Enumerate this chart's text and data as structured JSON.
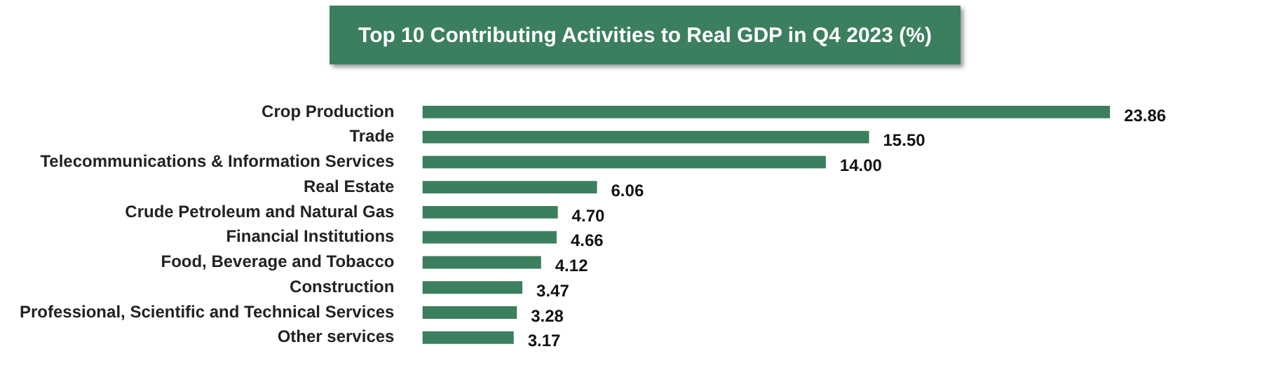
{
  "chart_data": {
    "type": "bar",
    "orientation": "horizontal",
    "title": "Top 10 Contributing Activities to Real GDP in Q4 2023 (%)",
    "categories": [
      "Crop Production",
      "Trade",
      "Telecommunications & Information Services",
      "Real Estate",
      "Crude Petroleum and Natural Gas",
      "Financial Institutions",
      "Food, Beverage and Tobacco",
      "Construction",
      "Professional, Scientific and Technical Services",
      "Other services"
    ],
    "values": [
      23.86,
      15.5,
      14.0,
      6.06,
      4.7,
      4.66,
      4.12,
      3.47,
      3.28,
      3.17
    ],
    "value_labels": [
      "23.86",
      "15.50",
      "14.00",
      "6.06",
      "4.70",
      "4.66",
      "4.12",
      "3.47",
      "3.28",
      "3.17"
    ],
    "color": "#3b7f5e",
    "legend": false
  }
}
